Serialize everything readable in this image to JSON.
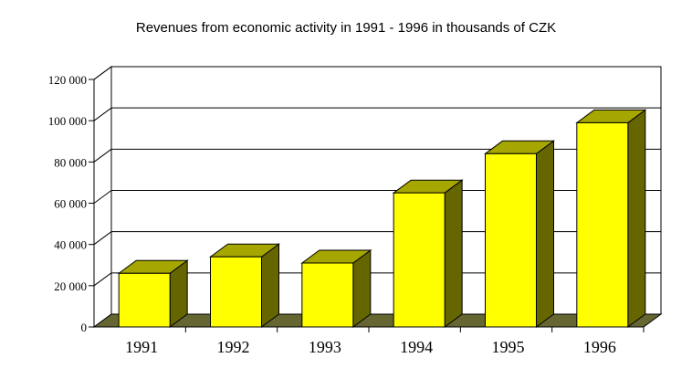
{
  "chart_data": {
    "type": "bar",
    "title": "Revenues from economic activity in 1991 - 1996 in thousands of CZK",
    "categories": [
      "1991",
      "1992",
      "1993",
      "1994",
      "1995",
      "1996"
    ],
    "values": [
      26000,
      34000,
      31000,
      65000,
      84000,
      99000
    ],
    "ylim": [
      0,
      120000
    ],
    "yticks": [
      0,
      20000,
      40000,
      60000,
      80000,
      100000,
      120000
    ],
    "ytick_labels": [
      "0",
      "20 000",
      "40 000",
      "60 000",
      "80 000",
      "100 000",
      "120 000"
    ],
    "grid": true,
    "legend": "none",
    "style": "3d",
    "colors": {
      "bar_front": "#ffff00",
      "bar_top": "#a6a600",
      "bar_side": "#666600",
      "floor": "#666633",
      "gridline": "#000000"
    }
  }
}
